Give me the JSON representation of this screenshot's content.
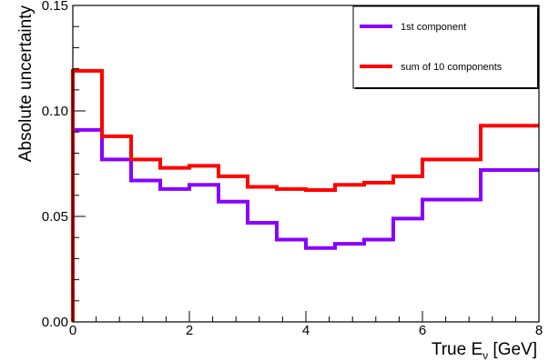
{
  "chart_data": {
    "type": "line",
    "subtype": "step-histogram",
    "title": "",
    "xlabel": "True E",
    "xlabel_subscript": "ν",
    "xlabel_unit": "[GeV]",
    "ylabel": "Absolute uncertainty",
    "xlim": [
      0,
      8
    ],
    "ylim": [
      0,
      0.15
    ],
    "x_ticks": [
      0,
      2,
      4,
      6,
      8
    ],
    "x_tick_labels": [
      "0",
      "2",
      "4",
      "6",
      "8"
    ],
    "y_ticks": [
      0.0,
      0.05,
      0.1,
      0.15
    ],
    "y_tick_labels": [
      "0.00",
      "0.05",
      "0.10",
      "0.15"
    ],
    "grid": false,
    "legend_position": "top-right",
    "bin_edges": [
      0,
      0.5,
      1,
      1.5,
      2,
      2.5,
      3,
      3.5,
      4,
      4.5,
      5,
      5.5,
      6,
      7,
      8
    ],
    "series": [
      {
        "name": "1st component",
        "color": "#8800ff",
        "values": [
          0.091,
          0.077,
          0.067,
          0.063,
          0.065,
          0.057,
          0.047,
          0.039,
          0.035,
          0.037,
          0.039,
          0.049,
          0.058,
          0.072
        ]
      },
      {
        "name": "sum of 10 components",
        "color": "#ff0000",
        "values": [
          0.119,
          0.088,
          0.077,
          0.073,
          0.074,
          0.069,
          0.064,
          0.063,
          0.0625,
          0.065,
          0.066,
          0.069,
          0.077,
          0.093
        ]
      }
    ]
  }
}
